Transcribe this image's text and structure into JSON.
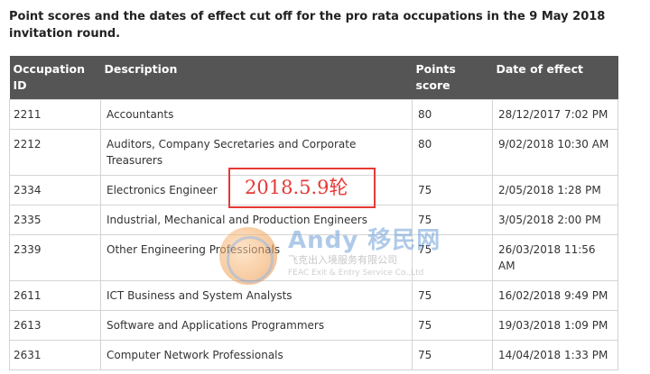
{
  "heading": "Point scores and the dates of effect cut off for the pro rata occupations in the 9 May 2018 invitation round.",
  "table": {
    "headers": {
      "id_line1": "Occupation",
      "id_line2": "ID",
      "description": "Description",
      "points_line1": "Points",
      "points_line2": "score",
      "date": "Date of effect"
    },
    "rows": [
      {
        "id": "2211",
        "description": "Accountants",
        "points": "80",
        "date": "28/12/2017  7:02 PM"
      },
      {
        "id": "2212",
        "description": "Auditors, Company Secretaries and Corporate Treasurers",
        "points": "80",
        "date": "9/02/2018  10:30 AM"
      },
      {
        "id": "2334",
        "description": "Electronics Engineer",
        "points": "75",
        "date": "2/05/2018  1:28 PM"
      },
      {
        "id": "2335",
        "description": "Industrial, Mechanical and Production Engineers",
        "points": "75",
        "date": "3/05/2018  2:00 PM"
      },
      {
        "id": "2339",
        "description": "Other Engineering Professionals",
        "points": "75",
        "date": "26/03/2018  11:56 AM"
      },
      {
        "id": "2611",
        "description": "ICT Business and System Analysts",
        "points": "75",
        "date": "16/02/2018  9:49 PM"
      },
      {
        "id": "2613",
        "description": "Software and Applications Programmers",
        "points": "75",
        "date": "19/03/2018  1:09 PM"
      },
      {
        "id": "2631",
        "description": "Computer Network Professionals",
        "points": "75",
        "date": "14/04/2018  1:33 PM"
      }
    ]
  },
  "annotation": "2018.5.9轮",
  "watermark": {
    "brand": "Andy 移民网",
    "line1": "飞克出入境服务有限公司",
    "line2": "FEAC Exit & Entry Service Co.,Ltd"
  },
  "colors": {
    "header_bg": "#555555",
    "annotation_red": "#e53935"
  }
}
